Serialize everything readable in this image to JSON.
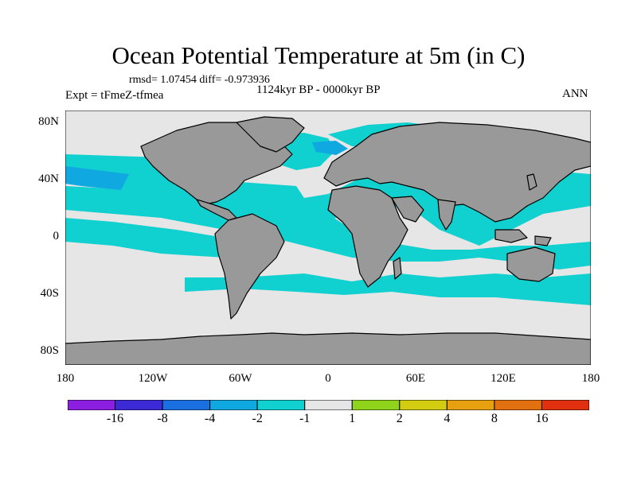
{
  "title": "Ocean Potential Temperature at 5m (in C)",
  "stats": "rmsd= 1.07454   diff= -0.973936",
  "experiment": "Expt = tFmeZ-tfmea",
  "period": "1124kyr BP - 0000kyr BP",
  "season": "ANN",
  "axes": {
    "y_ticks": [
      "80N",
      "40N",
      "0",
      "40S",
      "80S"
    ],
    "x_ticks": [
      "180",
      "120W",
      "60W",
      "0",
      "60E",
      "120E",
      "180"
    ]
  },
  "colorbar": {
    "labels": [
      "-16",
      "-8",
      "-4",
      "-2",
      "-1",
      "1",
      "2",
      "4",
      "8",
      "16"
    ],
    "colors": [
      "#8b1ee0",
      "#3c2ad6",
      "#1a70e0",
      "#10a8e0",
      "#10d0d0",
      "#e6e6e6",
      "#8fd41a",
      "#d4cc10",
      "#e6a010",
      "#e07010",
      "#e03010"
    ]
  },
  "palette": {
    "land": "#999999",
    "neutral": "#e6e6e6",
    "cool_light": "#10d0d0",
    "cool_mid": "#10a8e0"
  }
}
